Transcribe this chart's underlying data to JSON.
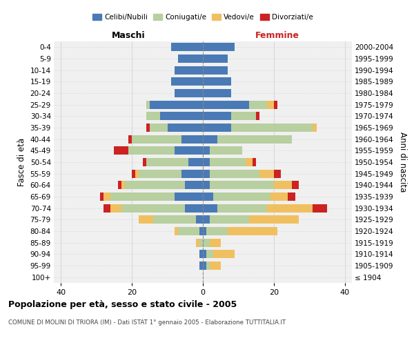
{
  "age_groups": [
    "100+",
    "95-99",
    "90-94",
    "85-89",
    "80-84",
    "75-79",
    "70-74",
    "65-69",
    "60-64",
    "55-59",
    "50-54",
    "45-49",
    "40-44",
    "35-39",
    "30-34",
    "25-29",
    "20-24",
    "15-19",
    "10-14",
    "5-9",
    "0-4"
  ],
  "birth_years": [
    "≤ 1904",
    "1905-1909",
    "1910-1914",
    "1915-1919",
    "1920-1924",
    "1925-1929",
    "1930-1934",
    "1935-1939",
    "1940-1944",
    "1945-1949",
    "1950-1954",
    "1955-1959",
    "1960-1964",
    "1965-1969",
    "1970-1974",
    "1975-1979",
    "1980-1984",
    "1985-1989",
    "1990-1994",
    "1995-1999",
    "2000-2004"
  ],
  "maschi_celibi": [
    0,
    1,
    1,
    0,
    1,
    2,
    5,
    8,
    5,
    6,
    4,
    8,
    6,
    10,
    12,
    15,
    8,
    9,
    8,
    7,
    9
  ],
  "maschi_coniugati": [
    0,
    0,
    0,
    1,
    6,
    12,
    18,
    18,
    17,
    12,
    12,
    13,
    14,
    5,
    4,
    1,
    0,
    0,
    0,
    0,
    0
  ],
  "maschi_vedovi": [
    0,
    0,
    0,
    1,
    1,
    4,
    3,
    2,
    1,
    1,
    0,
    0,
    0,
    0,
    0,
    0,
    0,
    0,
    0,
    0,
    0
  ],
  "maschi_divorziati": [
    0,
    0,
    0,
    0,
    0,
    0,
    2,
    1,
    1,
    1,
    1,
    4,
    1,
    1,
    0,
    0,
    0,
    0,
    0,
    0,
    0
  ],
  "femmine_nubili": [
    0,
    1,
    1,
    0,
    1,
    2,
    4,
    3,
    2,
    2,
    2,
    2,
    4,
    8,
    8,
    13,
    8,
    8,
    7,
    7,
    9
  ],
  "femmine_coniugate": [
    0,
    1,
    2,
    2,
    6,
    11,
    14,
    16,
    18,
    14,
    10,
    9,
    21,
    23,
    7,
    5,
    0,
    0,
    0,
    0,
    0
  ],
  "femmine_vedove": [
    0,
    3,
    6,
    3,
    14,
    14,
    13,
    5,
    5,
    4,
    2,
    0,
    0,
    1,
    0,
    2,
    0,
    0,
    0,
    0,
    0
  ],
  "femmine_divorziate": [
    0,
    0,
    0,
    0,
    0,
    0,
    4,
    2,
    2,
    2,
    1,
    0,
    0,
    0,
    1,
    1,
    0,
    0,
    0,
    0,
    0
  ],
  "color_celibi": "#4a7ab5",
  "color_coniugati": "#b8cfa0",
  "color_vedovi": "#f0c060",
  "color_divorziati": "#cc2222",
  "xlim": 42,
  "title": "Popolazione per età, sesso e stato civile - 2005",
  "subtitle": "COMUNE DI MOLINI DI TRIORA (IM) - Dati ISTAT 1° gennaio 2005 - Elaborazione TUTTITALIA.IT",
  "ylabel_left": "Fasce di età",
  "ylabel_right": "Anni di nascita",
  "maschi_label": "Maschi",
  "femmine_label": "Femmine",
  "legend_labels": [
    "Celibi/Nubili",
    "Coniugati/e",
    "Vedovi/e",
    "Divorziati/e"
  ]
}
